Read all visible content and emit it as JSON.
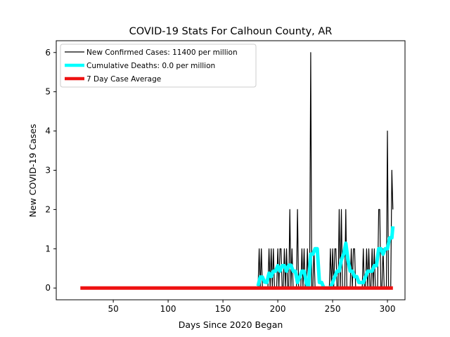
{
  "chart_data": {
    "type": "line",
    "title": "COVID-19 Stats For Calhoun County, AR",
    "xlabel": "Days Since 2020 Began",
    "ylabel": "New COVID-19 Cases",
    "xlim": [
      -2,
      316
    ],
    "ylim": [
      -0.3,
      6.3
    ],
    "xticks": [
      50,
      100,
      150,
      200,
      250,
      300
    ],
    "yticks": [
      0,
      1,
      2,
      3,
      4,
      5,
      6
    ],
    "grid": false,
    "legend_position": "top-left",
    "series": [
      {
        "name": "New Confirmed Cases: 11400 per million",
        "color": "#000000",
        "x": [
          180,
          181,
          182,
          183,
          184,
          185,
          186,
          187,
          188,
          189,
          190,
          191,
          192,
          193,
          194,
          195,
          196,
          197,
          198,
          199,
          200,
          201,
          202,
          203,
          204,
          205,
          206,
          207,
          208,
          209,
          210,
          211,
          212,
          213,
          214,
          215,
          216,
          217,
          218,
          219,
          220,
          221,
          222,
          223,
          224,
          225,
          226,
          227,
          228,
          229,
          230,
          231,
          232,
          233,
          234,
          235,
          236,
          237,
          238,
          239,
          240,
          241,
          242,
          243,
          244,
          245,
          246,
          247,
          248,
          249,
          250,
          251,
          252,
          253,
          254,
          255,
          256,
          257,
          258,
          259,
          260,
          261,
          262,
          263,
          264,
          265,
          266,
          267,
          268,
          269,
          270,
          271,
          272,
          273,
          274,
          275,
          276,
          277,
          278,
          279,
          280,
          281,
          282,
          283,
          284,
          285,
          286,
          287,
          288,
          289,
          290,
          291,
          292,
          293,
          294,
          295,
          296,
          297,
          298,
          299,
          300,
          301,
          302,
          303,
          304,
          305
        ],
        "values": [
          0,
          0,
          0,
          1,
          0,
          1,
          0,
          0,
          0,
          0,
          0,
          0,
          1,
          0,
          1,
          0,
          1,
          0,
          0,
          0,
          1,
          0,
          1,
          1,
          0,
          0,
          1,
          0,
          1,
          0,
          0,
          2,
          0,
          1,
          0,
          0,
          0,
          0,
          2,
          0,
          0,
          0,
          1,
          0,
          1,
          0,
          0,
          1,
          0,
          0,
          6,
          0,
          0,
          1,
          0,
          0,
          0,
          0,
          0,
          0,
          0,
          0,
          0,
          0,
          0,
          0,
          0,
          0,
          1,
          0,
          1,
          0,
          1,
          1,
          0,
          0,
          2,
          0,
          2,
          0,
          0,
          0,
          2,
          0,
          0,
          0,
          0,
          1,
          0,
          1,
          1,
          0,
          0,
          0,
          0,
          0,
          0,
          0,
          1,
          0,
          0,
          1,
          0,
          1,
          0,
          0,
          1,
          0,
          1,
          0,
          0,
          0,
          2,
          2,
          0,
          0,
          1,
          0,
          0,
          0,
          4,
          0,
          0,
          0,
          3,
          2
        ]
      },
      {
        "name": "Cumulative Deaths: 0.0 per million",
        "color": "#00ffff",
        "x": [
          182,
          184,
          186,
          188,
          190,
          192,
          194,
          196,
          198,
          200,
          202,
          204,
          206,
          208,
          210,
          212,
          214,
          216,
          218,
          220,
          222,
          224,
          226,
          228,
          230,
          232,
          234,
          236,
          238,
          240,
          242,
          244,
          246,
          248,
          250,
          252,
          254,
          256,
          258,
          260,
          262,
          264,
          266,
          268,
          270,
          272,
          274,
          276,
          278,
          280,
          282,
          284,
          286,
          288,
          290,
          292,
          294,
          296,
          298,
          300,
          302,
          304,
          305
        ],
        "values": [
          0.05,
          0.28,
          0.28,
          0.15,
          0.14,
          0.38,
          0.29,
          0.43,
          0.43,
          0.57,
          0.43,
          0.57,
          0.57,
          0.43,
          0.58,
          0.58,
          0.43,
          0.43,
          0.14,
          0.28,
          0.43,
          0.43,
          0.14,
          0.0,
          0.86,
          0.86,
          1.0,
          1.0,
          0.14,
          0.14,
          0.0,
          0.0,
          0.0,
          0.0,
          0.14,
          0.29,
          0.43,
          0.43,
          0.72,
          0.86,
          1.14,
          0.72,
          0.43,
          0.43,
          0.29,
          0.29,
          0.14,
          0.14,
          0.14,
          0.28,
          0.43,
          0.43,
          0.43,
          0.57,
          0.57,
          1.0,
          1.0,
          0.86,
          1.0,
          1.0,
          1.28,
          1.28,
          1.57
        ]
      },
      {
        "name": "7 Day Case Average",
        "color": "#ee1111",
        "x": [
          20,
          305
        ],
        "values": [
          0,
          0
        ]
      }
    ]
  }
}
